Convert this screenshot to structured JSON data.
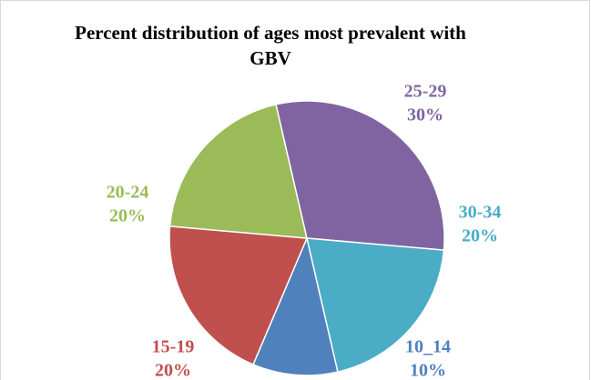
{
  "chart_data": {
    "type": "pie",
    "title": "Percent distribution of ages most prevalent with GBV",
    "categories": [
      "10_14",
      "15-19",
      "20-24",
      "25-29",
      "30-34"
    ],
    "values": [
      10,
      20,
      20,
      30,
      20
    ],
    "value_labels": [
      "10%",
      "20%",
      "20%",
      "30%",
      "20%"
    ],
    "colors": [
      "#4f81bd",
      "#c0504d",
      "#9bbb59",
      "#8064a2",
      "#4bacc6"
    ]
  }
}
